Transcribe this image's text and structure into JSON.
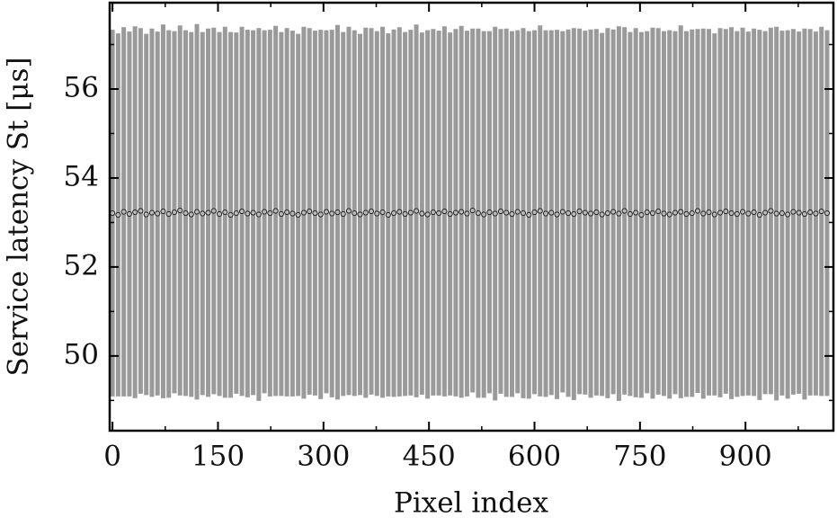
{
  "chart_data": {
    "type": "errorbar-scatter",
    "xlabel": "Pixel index",
    "ylabel": "Service latency St [μs]",
    "xlim": [
      -4,
      1025
    ],
    "ylim": [
      48.32,
      57.94
    ],
    "xticks": [
      0,
      150,
      300,
      450,
      600,
      750,
      900
    ],
    "yticks": [
      50,
      52,
      54,
      56
    ],
    "xminorticks": [
      75,
      225,
      375,
      525,
      675,
      825,
      975
    ],
    "yminorticks": [
      49,
      51,
      53,
      55,
      57
    ],
    "errorbar_color": "#9a9a9a",
    "marker_color": "#222222",
    "marker_fill": "#bbbbbb",
    "x": [
      0,
      8,
      16,
      24,
      32,
      40,
      48,
      56,
      64,
      72,
      80,
      88,
      96,
      104,
      112,
      120,
      128,
      136,
      144,
      152,
      160,
      168,
      176,
      184,
      192,
      200,
      208,
      216,
      224,
      232,
      240,
      248,
      256,
      264,
      272,
      280,
      288,
      296,
      304,
      312,
      320,
      328,
      336,
      344,
      352,
      360,
      368,
      376,
      384,
      392,
      400,
      408,
      416,
      424,
      432,
      440,
      448,
      456,
      464,
      472,
      480,
      488,
      496,
      504,
      512,
      520,
      528,
      536,
      544,
      552,
      560,
      568,
      576,
      584,
      592,
      600,
      608,
      616,
      624,
      632,
      640,
      648,
      656,
      664,
      672,
      680,
      688,
      696,
      704,
      712,
      720,
      728,
      736,
      744,
      752,
      760,
      768,
      776,
      784,
      792,
      800,
      808,
      816,
      824,
      832,
      840,
      848,
      856,
      864,
      872,
      880,
      888,
      896,
      904,
      912,
      920,
      928,
      936,
      944,
      952,
      960,
      968,
      976,
      984,
      992,
      1000,
      1008,
      1016
    ],
    "values": [
      53.21,
      53.17,
      53.24,
      53.19,
      53.23,
      53.26,
      53.18,
      53.22,
      53.2,
      53.25,
      53.19,
      53.23,
      53.27,
      53.21,
      53.18,
      53.24,
      53.2,
      53.22,
      53.26,
      53.19,
      53.23,
      53.17,
      53.21,
      53.25,
      53.2,
      53.22,
      53.18,
      53.24,
      53.21,
      53.26,
      53.19,
      53.23,
      53.2,
      53.17,
      53.22,
      53.25,
      53.21,
      53.18,
      53.24,
      53.2,
      53.23,
      53.19,
      53.26,
      53.21,
      53.18,
      53.22,
      53.25,
      53.2,
      53.23,
      53.17,
      53.21,
      53.24,
      53.19,
      53.22,
      53.26,
      53.2,
      53.18,
      53.23,
      53.21,
      53.25,
      53.19,
      53.22,
      53.24,
      53.2,
      53.27,
      53.21,
      53.18,
      53.23,
      53.2,
      53.25,
      53.22,
      53.19,
      53.24,
      53.21,
      53.17,
      53.23,
      53.26,
      53.2,
      53.22,
      53.18,
      53.24,
      53.21,
      53.19,
      53.25,
      53.22,
      53.2,
      53.23,
      53.18,
      53.21,
      53.24,
      53.2,
      53.26,
      53.19,
      53.22,
      53.17,
      53.23,
      53.21,
      53.25,
      53.2,
      53.18,
      53.22,
      53.24,
      53.19,
      53.21,
      53.26,
      53.2,
      53.23,
      53.18,
      53.22,
      53.25,
      53.21,
      53.19,
      53.24,
      53.2,
      53.23,
      53.17,
      53.22,
      53.26,
      53.2,
      53.21,
      53.18,
      53.24,
      53.22,
      53.19,
      53.23,
      53.2,
      53.25,
      53.21
    ],
    "errors": [
      4.12,
      4.08,
      4.15,
      4.1,
      4.18,
      4.11,
      4.06,
      4.14,
      4.09,
      4.2,
      4.13,
      4.07,
      4.16,
      4.11,
      4.1,
      4.22,
      4.08,
      4.14,
      4.12,
      4.09,
      4.17,
      4.11,
      4.06,
      4.15,
      4.13,
      4.1,
      4.19,
      4.08,
      4.12,
      4.16,
      4.09,
      4.14,
      4.11,
      4.07,
      4.18,
      4.12,
      4.1,
      4.15,
      4.08,
      4.13,
      4.21,
      4.09,
      4.14,
      4.11,
      4.06,
      4.16,
      4.12,
      4.1,
      4.17,
      4.08,
      4.13,
      4.15,
      4.09,
      4.11,
      4.19,
      4.07,
      4.14,
      4.12,
      4.1,
      4.16,
      4.08,
      4.13,
      4.18,
      4.11,
      4.09,
      4.15,
      4.12,
      4.07,
      4.2,
      4.1,
      4.14,
      4.11,
      4.08,
      4.16,
      4.13,
      4.09,
      4.17,
      4.12,
      4.1,
      4.15,
      4.06,
      4.13,
      4.18,
      4.11,
      4.09,
      4.14,
      4.12,
      4.08,
      4.16,
      4.1,
      4.21,
      4.13,
      4.09,
      4.15,
      4.11,
      4.07,
      4.17,
      4.12,
      4.1,
      4.14,
      4.08,
      4.19,
      4.11,
      4.13,
      4.09,
      4.16,
      4.12,
      4.07,
      4.15,
      4.1,
      4.18,
      4.11,
      4.14,
      4.09,
      4.13,
      4.16,
      4.08,
      4.12,
      4.2,
      4.1,
      4.14,
      4.11,
      4.07,
      4.17,
      4.12,
      4.09,
      4.15,
      4.11
    ]
  }
}
